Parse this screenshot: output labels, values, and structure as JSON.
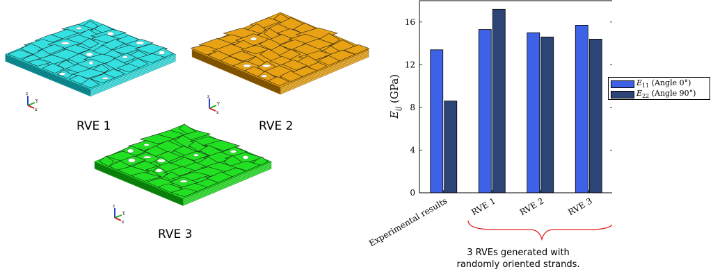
{
  "rve_panels": [
    {
      "label": "RVE 1",
      "color": "#35e0e0",
      "edge": "#0e8f95"
    },
    {
      "label": "RVE 2",
      "color": "#e8a214",
      "edge": "#8a5a00"
    },
    {
      "label": "RVE 3",
      "color": "#22e122",
      "edge": "#0b8a0b"
    }
  ],
  "axis_triad": {
    "x": "x",
    "y": "Y",
    "z": "z"
  },
  "chart_data": {
    "type": "bar",
    "categories": [
      "Experimental results",
      "RVE 1",
      "RVE 2",
      "RVE 3"
    ],
    "series": [
      {
        "name_main": "E",
        "name_sub": "11",
        "name_rest": " (Angle 0°)",
        "color": "#3d62e6",
        "values": [
          13.4,
          15.3,
          15.0,
          15.7
        ]
      },
      {
        "name_main": "E",
        "name_sub": "22",
        "name_rest": " (Angle 90°)",
        "color": "#2c4576",
        "values": [
          8.6,
          17.2,
          14.6,
          14.4
        ]
      }
    ],
    "ylabel_main": "E",
    "ylabel_sub": "ij",
    "ylabel_rest": " (GPa)",
    "yticks": [
      0,
      4,
      8,
      12,
      16
    ],
    "ylim": [
      0,
      18
    ],
    "grid": false,
    "legend": "right"
  },
  "annotation": {
    "line1": "3 RVEs generated with",
    "line2": "randomly oriented strands.",
    "brace_color": "#e02020"
  }
}
